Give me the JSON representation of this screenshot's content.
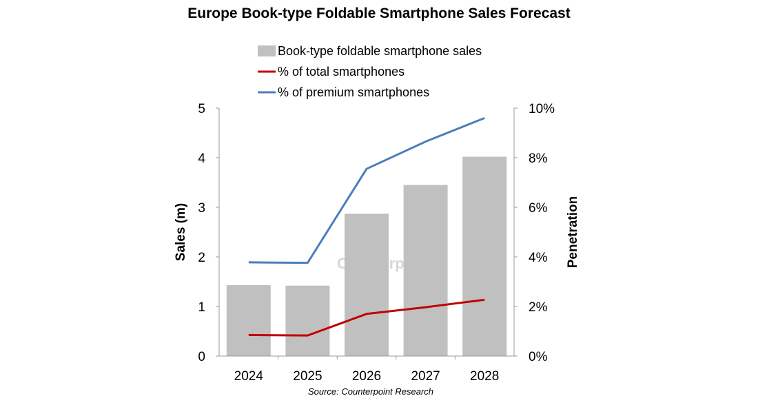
{
  "chart_data": {
    "type": "bar",
    "title": "Europe Book-type Foldable Smartphone Sales Forecast",
    "categories": [
      "2024",
      "2025",
      "2026",
      "2027",
      "2028"
    ],
    "series": [
      {
        "name": "Book-type foldable smartphone sales",
        "kind": "bar",
        "axis": "left",
        "values": [
          1.43,
          1.42,
          2.87,
          3.45,
          4.02
        ],
        "color": "#c0c0c0"
      },
      {
        "name": "% of total smartphones",
        "kind": "line",
        "axis": "right",
        "values": [
          0.85,
          0.83,
          1.7,
          1.97,
          2.27
        ],
        "color": "#c00000"
      },
      {
        "name": "% of premium smartphones",
        "kind": "line",
        "axis": "right",
        "values": [
          3.78,
          3.76,
          7.55,
          8.65,
          9.6
        ],
        "color": "#4a7ebb"
      }
    ],
    "ylabel": "Sales (m)",
    "y2label": "Penetration",
    "ylim": [
      0,
      5
    ],
    "y2lim": [
      0,
      10
    ],
    "yticks": [
      "0",
      "1",
      "2",
      "3",
      "4",
      "5"
    ],
    "y2ticks": [
      "0%",
      "2%",
      "4%",
      "6%",
      "8%",
      "10%"
    ],
    "grid": false,
    "legend_position": "top-center"
  },
  "source": "Source: Counterpoint Research",
  "watermark": "Counterpoint"
}
